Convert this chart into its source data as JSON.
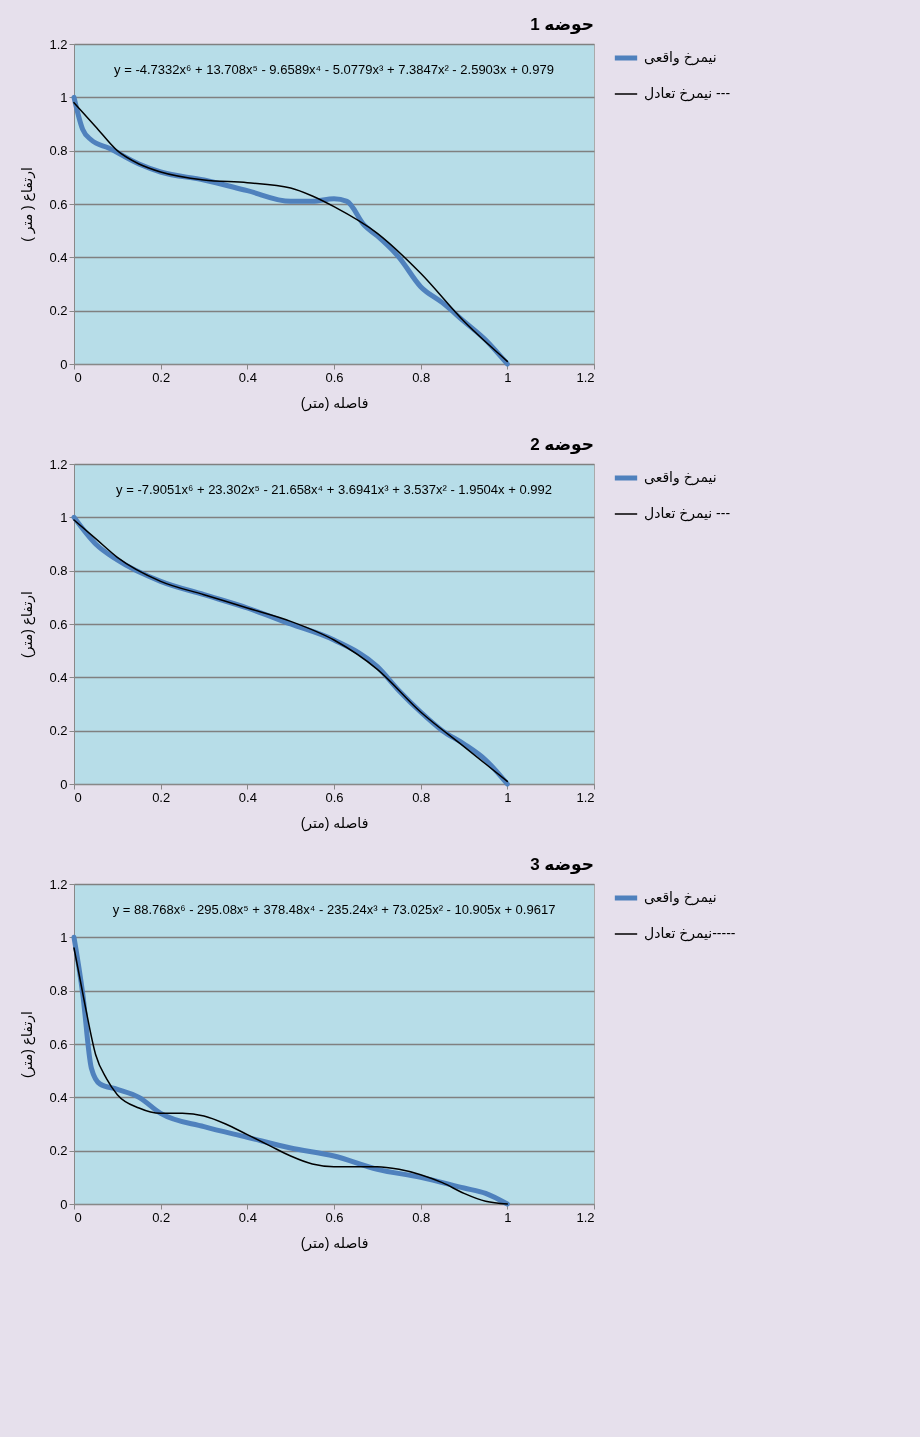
{
  "chart_data": [
    {
      "type": "line",
      "title": "حوضه 1",
      "xlabel": "فاصله (متر)",
      "ylabel": "ارتفاع ( متر )",
      "xlim": [
        0,
        1.2
      ],
      "ylim": [
        0,
        1.2
      ],
      "xticks": [
        0,
        0.2,
        0.4,
        0.6,
        0.8,
        1,
        1.2
      ],
      "yticks": [
        0,
        0.2,
        0.4,
        0.6,
        0.8,
        1,
        1.2
      ],
      "grid": "y",
      "legend": "right",
      "marker": "none",
      "line_style": "solid",
      "annotations": [
        "y = -4.7332x⁶ + 13.708x⁵ - 9.6589x⁴ - 5.0779x³ + 7.3847x² - 2.5903x + 0.979"
      ],
      "series": [
        {
          "name": "نیمرخ واقعی",
          "color": "#4f81bd",
          "x": [
            0,
            0.02,
            0.04,
            0.08,
            0.15,
            0.2,
            0.3,
            0.4,
            0.5,
            0.55,
            0.6,
            0.63,
            0.67,
            0.7,
            0.75,
            0.8,
            0.85,
            0.9,
            0.95,
            1
          ],
          "values": [
            1,
            0.88,
            0.84,
            0.81,
            0.75,
            0.72,
            0.69,
            0.65,
            0.61,
            0.61,
            0.62,
            0.61,
            0.52,
            0.48,
            0.4,
            0.29,
            0.23,
            0.16,
            0.09,
            0
          ]
        },
        {
          "name": "نیمرخ تعادل ---",
          "color": "#000000",
          "x": [
            0,
            0.05,
            0.1,
            0.15,
            0.2,
            0.3,
            0.4,
            0.5,
            0.55,
            0.6,
            0.7,
            0.8,
            0.9,
            1
          ],
          "values": [
            0.98,
            0.89,
            0.8,
            0.75,
            0.72,
            0.69,
            0.68,
            0.66,
            0.63,
            0.59,
            0.49,
            0.34,
            0.16,
            0.01
          ]
        }
      ]
    },
    {
      "type": "line",
      "title": "حوضه 2",
      "xlabel": "فاصله (متر)",
      "ylabel": "ارتفاع (متر)",
      "xlim": [
        0,
        1.2
      ],
      "ylim": [
        0,
        1.2
      ],
      "xticks": [
        0,
        0.2,
        0.4,
        0.6,
        0.8,
        1,
        1.2
      ],
      "yticks": [
        0,
        0.2,
        0.4,
        0.6,
        0.8,
        1,
        1.2
      ],
      "grid": "y",
      "legend": "right",
      "marker": "none",
      "line_style": "solid",
      "annotations": [
        "y = -7.9051x⁶ + 23.302x⁵ - 21.658x⁴ + 3.6941x³ + 3.537x² - 1.9504x + 0.992"
      ],
      "series": [
        {
          "name": "نیمرخ واقعی",
          "color": "#4f81bd",
          "x": [
            0,
            0.05,
            0.1,
            0.2,
            0.3,
            0.4,
            0.5,
            0.6,
            0.7,
            0.75,
            0.8,
            0.85,
            0.9,
            0.95,
            1
          ],
          "values": [
            1,
            0.9,
            0.84,
            0.76,
            0.71,
            0.66,
            0.6,
            0.54,
            0.44,
            0.35,
            0.27,
            0.2,
            0.15,
            0.09,
            0
          ]
        },
        {
          "name": "نیمرخ تعادل ---",
          "color": "#000000",
          "x": [
            0,
            0.05,
            0.1,
            0.2,
            0.3,
            0.4,
            0.5,
            0.6,
            0.7,
            0.8,
            0.9,
            1
          ],
          "values": [
            0.99,
            0.92,
            0.85,
            0.76,
            0.71,
            0.66,
            0.61,
            0.54,
            0.43,
            0.27,
            0.14,
            0.01
          ]
        }
      ]
    },
    {
      "type": "line",
      "title": "حوضه 3",
      "xlabel": "فاصله (متر)",
      "ylabel": "ارتفاع (متر)",
      "xlim": [
        0,
        1.2
      ],
      "ylim": [
        0,
        1.2
      ],
      "xticks": [
        0,
        0.2,
        0.4,
        0.6,
        0.8,
        1,
        1.2
      ],
      "yticks": [
        0,
        0.2,
        0.4,
        0.6,
        0.8,
        1,
        1.2
      ],
      "grid": "y",
      "legend": "right",
      "marker": "none",
      "line_style": "solid",
      "annotations": [
        "y = 88.768x⁶ - 295.08x⁵ + 378.48x⁴ - 235.24x³ + 73.025x² - 10.905x + 0.9617"
      ],
      "series": [
        {
          "name": "نیمرخ واقعی",
          "color": "#4f81bd",
          "x": [
            0,
            0.02,
            0.04,
            0.06,
            0.1,
            0.15,
            0.2,
            0.3,
            0.4,
            0.5,
            0.6,
            0.7,
            0.8,
            0.9,
            0.95,
            1
          ],
          "values": [
            1,
            0.79,
            0.51,
            0.45,
            0.43,
            0.4,
            0.34,
            0.29,
            0.25,
            0.21,
            0.18,
            0.13,
            0.1,
            0.06,
            0.04,
            0
          ]
        },
        {
          "name": "نیمرخ تعادل-----",
          "color": "#000000",
          "x": [
            0,
            0.025,
            0.05,
            0.075,
            0.1,
            0.15,
            0.2,
            0.25,
            0.3,
            0.35,
            0.4,
            0.45,
            0.5,
            0.55,
            0.6,
            0.65,
            0.7,
            0.75,
            0.8,
            0.85,
            0.9,
            0.95,
            1
          ],
          "values": [
            0.96,
            0.75,
            0.56,
            0.47,
            0.41,
            0.36,
            0.34,
            0.34,
            0.33,
            0.3,
            0.26,
            0.22,
            0.18,
            0.15,
            0.14,
            0.14,
            0.14,
            0.13,
            0.11,
            0.08,
            0.04,
            0.01,
            0
          ]
        }
      ]
    }
  ]
}
